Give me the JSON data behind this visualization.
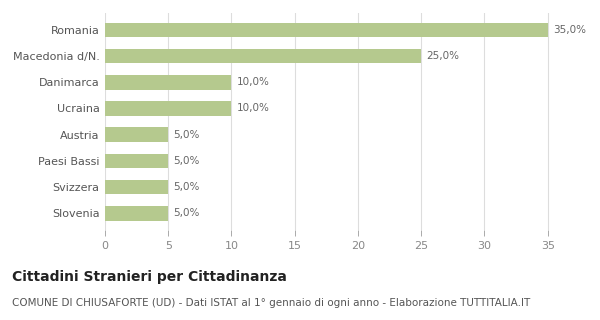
{
  "categories": [
    "Slovenia",
    "Svizzera",
    "Paesi Bassi",
    "Austria",
    "Ucraina",
    "Danimarca",
    "Macedonia d/N.",
    "Romania"
  ],
  "values": [
    5,
    5,
    5,
    5,
    10,
    10,
    25,
    35
  ],
  "labels": [
    "5,0%",
    "5,0%",
    "5,0%",
    "5,0%",
    "10,0%",
    "10,0%",
    "25,0%",
    "35,0%"
  ],
  "bar_color": "#b5c98e",
  "background_color": "#ffffff",
  "xlim": [
    0,
    37
  ],
  "xticks": [
    0,
    5,
    10,
    15,
    20,
    25,
    30,
    35
  ],
  "title_bold": "Cittadini Stranieri per Cittadinanza",
  "subtitle": "COMUNE DI CHIUSAFORTE (UD) - Dati ISTAT al 1° gennaio di ogni anno - Elaborazione TUTTITALIA.IT",
  "title_fontsize": 10,
  "subtitle_fontsize": 7.5,
  "label_fontsize": 7.5,
  "tick_fontsize": 8,
  "grid_color": "#dddddd",
  "bar_height": 0.55
}
